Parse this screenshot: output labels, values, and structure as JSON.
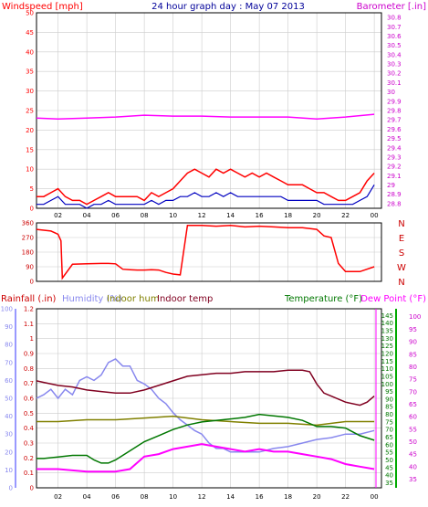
{
  "chart_data": [
    {
      "type": "line",
      "title": "24 hour graph day : May 07 2013",
      "left_axis_label": "Windspeed [mph]",
      "right_axis_label": "Barometer [.in]",
      "x_tick_labels": [
        "02",
        "04",
        "06",
        "08",
        "10",
        "12",
        "14",
        "16",
        "18",
        "20",
        "22",
        "00"
      ],
      "y_left_ticks": [
        "0",
        "5",
        "10",
        "15",
        "20",
        "25",
        "30",
        "35",
        "40",
        "45",
        "50"
      ],
      "y_left_range": [
        0,
        50
      ],
      "y_right_ticks": [
        "28.8",
        "28.9",
        "29",
        "29.1",
        "29.2",
        "29.3",
        "29.4",
        "29.5",
        "29.6",
        "29.7",
        "29.8",
        "29.9",
        "30",
        "30.1",
        "30.2",
        "30.3",
        "30.4",
        "30.5",
        "30.6",
        "30.7",
        "30.8"
      ],
      "y_right_range": [
        28.75,
        30.85
      ],
      "colors": {
        "wind_gust": "#ff0000",
        "wind_avg": "#0000c0",
        "barometer": "#ff00ff",
        "axis_left": "#ff0000",
        "axis_right": "#cc00cc",
        "title": "#000099"
      },
      "series": [
        {
          "kind": "wind_gust",
          "x": [
            0.5,
            1,
            1.5,
            2,
            2.5,
            3,
            3.5,
            4,
            4.5,
            5,
            5.5,
            6,
            6.5,
            7,
            7.5,
            8,
            8.5,
            9,
            9.5,
            10,
            10.5,
            11,
            11.5,
            12,
            12.5,
            13,
            13.5,
            14,
            14.5,
            15,
            15.5,
            16,
            16.5,
            17,
            17.5,
            18,
            18.5,
            19,
            19.5,
            20,
            20.5,
            21,
            21.5,
            22,
            22.5,
            23,
            23.5,
            24
          ],
          "values": [
            3,
            3,
            4,
            5,
            3,
            2,
            2,
            1,
            2,
            3,
            4,
            3,
            3,
            3,
            3,
            2,
            4,
            3,
            4,
            5,
            7,
            9,
            10,
            9,
            8,
            10,
            9,
            10,
            9,
            8,
            9,
            8,
            9,
            8,
            7,
            6,
            6,
            6,
            5,
            4,
            4,
            3,
            2,
            2,
            3,
            4,
            7,
            9
          ]
        },
        {
          "kind": "wind_avg",
          "x": [
            0.5,
            1,
            1.5,
            2,
            2.5,
            3,
            3.5,
            4,
            4.5,
            5,
            5.5,
            6,
            6.5,
            7,
            7.5,
            8,
            8.5,
            9,
            9.5,
            10,
            10.5,
            11,
            11.5,
            12,
            12.5,
            13,
            13.5,
            14,
            14.5,
            15,
            15.5,
            16,
            16.5,
            17,
            17.5,
            18,
            18.5,
            19,
            19.5,
            20,
            20.5,
            21,
            21.5,
            22,
            22.5,
            23,
            23.5,
            24
          ],
          "values": [
            1,
            1,
            2,
            3,
            1,
            1,
            1,
            0,
            1,
            1,
            2,
            1,
            1,
            1,
            1,
            1,
            2,
            1,
            2,
            2,
            3,
            3,
            4,
            3,
            3,
            4,
            3,
            4,
            3,
            3,
            3,
            3,
            3,
            3,
            3,
            2,
            2,
            2,
            2,
            2,
            1,
            1,
            1,
            1,
            1,
            2,
            3,
            6
          ]
        },
        {
          "kind": "barometer",
          "x": [
            0.5,
            2,
            4,
            6,
            8,
            10,
            12,
            14,
            16,
            18,
            20,
            22,
            24
          ],
          "values": [
            29.72,
            29.71,
            29.72,
            29.73,
            29.75,
            29.74,
            29.74,
            29.73,
            29.73,
            29.73,
            29.71,
            29.73,
            29.76
          ]
        }
      ]
    },
    {
      "type": "line",
      "right_axis_label": "N W S E N",
      "compass": [
        "N",
        "W",
        "S",
        "E",
        "N"
      ],
      "y_left_ticks": [
        "0",
        "90",
        "180",
        "270",
        "360"
      ],
      "y_left_range": [
        0,
        360
      ],
      "color": "#ff0000",
      "series": [
        {
          "kind": "wind_direction",
          "x": [
            0.5,
            1,
            1.5,
            2,
            2.2,
            2.3,
            3,
            4,
            5,
            5.5,
            6,
            6.5,
            7,
            7.5,
            8,
            8.5,
            9,
            9.5,
            10,
            10.5,
            11,
            12,
            13,
            14,
            15,
            16,
            17,
            18,
            19,
            20,
            20.5,
            21,
            21.5,
            22,
            23,
            24
          ],
          "values": [
            320,
            315,
            310,
            290,
            250,
            20,
            105,
            108,
            110,
            110,
            108,
            75,
            72,
            70,
            70,
            72,
            70,
            55,
            45,
            40,
            345,
            345,
            340,
            345,
            335,
            340,
            335,
            330,
            330,
            320,
            280,
            270,
            110,
            60,
            60,
            90
          ]
        }
      ]
    },
    {
      "type": "line",
      "labels": {
        "rain": "Rainfall (.in)",
        "humidity": "Humidity (%)",
        "indoor_hum": "Indoor hum",
        "indoor_temp": "Indoor temp",
        "temperature": "Temperature (°F)",
        "dew_point": "Dew Point (°F)"
      },
      "x_tick_labels": [
        "02",
        "04",
        "06",
        "08",
        "10",
        "12",
        "14",
        "16",
        "18",
        "20",
        "22",
        "00"
      ],
      "rain_ticks": [
        "0",
        "0.1",
        "0.2",
        "0.3",
        "0.4",
        "0.5",
        "0.6",
        "0.7",
        "0.8",
        "0.9",
        "1",
        "1.1",
        "1.2"
      ],
      "rain_range": [
        0,
        1.2
      ],
      "humidity_ticks": [
        "0",
        "10",
        "20",
        "30",
        "40",
        "50",
        "60",
        "70",
        "80",
        "90",
        "100"
      ],
      "humidity_range": [
        0,
        100
      ],
      "temp_ticks": [
        "35",
        "40",
        "45",
        "50",
        "55",
        "60",
        "65",
        "70",
        "75",
        "80",
        "85",
        "90",
        "95",
        "100",
        "105",
        "110",
        "115",
        "120",
        "125",
        "130",
        "135",
        "140",
        "145"
      ],
      "temp_range": [
        31.7,
        149.4
      ],
      "dew_ticks": [
        "35",
        "40",
        "45",
        "50",
        "55",
        "60",
        "65",
        "70",
        "75",
        "80",
        "85",
        "90",
        "95",
        "100"
      ],
      "dew_range": [
        31.5,
        103.2
      ],
      "colors": {
        "rain": "#cc0000",
        "humidity": "#8888ee",
        "indoor_hum": "#808000",
        "indoor_temp": "#800020",
        "temperature": "#007700",
        "dew_point": "#ff00ff",
        "inner_axis": "#ff00ff",
        "annotation": "#ffff00"
      },
      "series": [
        {
          "kind": "humidity",
          "x": [
            0.5,
            1,
            1.5,
            2,
            2.5,
            3,
            3.5,
            4,
            4.5,
            5,
            5.5,
            6,
            6.5,
            7,
            7.5,
            8,
            8.5,
            9,
            9.5,
            10,
            10.5,
            11,
            11.5,
            12,
            12.5,
            13,
            13.5,
            14,
            15,
            16,
            17,
            18,
            19,
            20,
            21,
            22,
            23,
            24
          ],
          "values": [
            50,
            52,
            55,
            50,
            55,
            52,
            60,
            62,
            60,
            63,
            70,
            72,
            68,
            68,
            60,
            58,
            55,
            50,
            47,
            42,
            38,
            35,
            32,
            30,
            25,
            22,
            22,
            20,
            20,
            20,
            22,
            23,
            25,
            27,
            28,
            30,
            30,
            32
          ]
        },
        {
          "kind": "indoor_hum",
          "x": [
            0.5,
            2,
            4,
            6,
            8,
            10,
            12,
            14,
            16,
            18,
            20,
            22,
            24
          ],
          "values": [
            37,
            37,
            38,
            38,
            39,
            40,
            38,
            37,
            36,
            36,
            35,
            37,
            37
          ]
        },
        {
          "kind": "indoor_temp",
          "x": [
            0.5,
            1,
            2,
            3,
            4,
            5,
            6,
            7,
            8,
            9,
            10,
            11,
            12,
            13,
            14,
            15,
            16,
            17,
            18,
            19,
            19.5,
            20,
            20.5,
            21,
            22,
            23,
            23.5,
            24
          ],
          "values": [
            102,
            101,
            99,
            98,
            96,
            95,
            94,
            94,
            96,
            99,
            102,
            105,
            106,
            107,
            107,
            108,
            108,
            108,
            109,
            109,
            108,
            100,
            94,
            92,
            88,
            86,
            88,
            92
          ]
        },
        {
          "kind": "temperature",
          "x": [
            0.5,
            1,
            2,
            3,
            4,
            4.5,
            5,
            5.5,
            6,
            6.5,
            7,
            8,
            9,
            10,
            11,
            12,
            13,
            14,
            15,
            16,
            17,
            18,
            19,
            20,
            21,
            22,
            23,
            24
          ],
          "values": [
            51,
            51,
            52,
            53,
            53,
            50,
            48,
            48,
            50,
            53,
            56,
            62,
            66,
            70,
            73,
            75,
            76,
            77,
            78,
            80,
            79,
            78,
            76,
            72,
            72,
            71,
            66,
            63
          ]
        },
        {
          "kind": "dew_point",
          "x": [
            0.5,
            2,
            4,
            6,
            7,
            8,
            9,
            10,
            11,
            12,
            13,
            14,
            15,
            16,
            17,
            18,
            19,
            20,
            21,
            22,
            23,
            24
          ],
          "values": [
            39,
            39,
            38,
            38,
            39,
            44,
            45,
            47,
            48,
            49,
            48,
            47,
            46,
            47,
            46,
            46,
            45,
            44,
            43,
            41,
            40,
            39
          ]
        }
      ]
    }
  ]
}
